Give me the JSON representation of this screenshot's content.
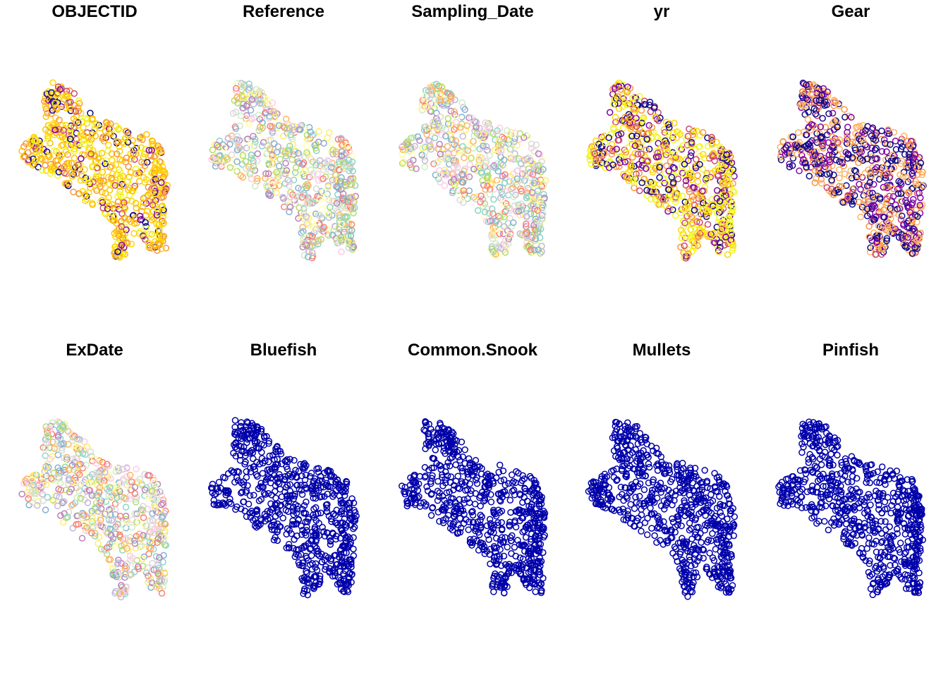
{
  "chart_data": {
    "type": "scatter",
    "description_style": "small-multiples spatial point maps, hollow circle markers",
    "layout": {
      "rows": 2,
      "cols": 5
    },
    "panels": [
      {
        "title": "OBJECTID",
        "palette": [
          "#0D0887",
          "#7E03A8",
          "#CC4778",
          "#F89540",
          "#F0F921",
          "#FFD700",
          "#FFC000"
        ],
        "weights": [
          0.08,
          0.05,
          0.06,
          0.14,
          0.12,
          0.3,
          0.25
        ],
        "count": 700
      },
      {
        "title": "Reference",
        "palette": [
          "#8DD3C7",
          "#FFFFB3",
          "#BEBADA",
          "#FB8072",
          "#80B1D3",
          "#FDB462",
          "#B3DE69",
          "#FCCDE5",
          "#D9D9D9",
          "#BC80BD",
          "#CCEBC5",
          "#FFED6F"
        ],
        "weights": [
          1,
          1,
          1,
          1,
          1,
          1,
          1,
          1,
          1,
          1,
          1,
          1
        ],
        "count": 650
      },
      {
        "title": "Sampling_Date",
        "palette": [
          "#8DD3C7",
          "#FFFFB3",
          "#BEBADA",
          "#FB8072",
          "#80B1D3",
          "#FDB462",
          "#B3DE69",
          "#FCCDE5",
          "#D9D9D9",
          "#BC80BD",
          "#CCEBC5",
          "#FFED6F"
        ],
        "weights": [
          1,
          1,
          1,
          1,
          1,
          1,
          1,
          1,
          1,
          1,
          1,
          1
        ],
        "count": 650
      },
      {
        "title": "yr",
        "palette": [
          "#0D0887",
          "#7E03A8",
          "#CC4778",
          "#F89540",
          "#F0F921",
          "#FFD700"
        ],
        "weights": [
          0.12,
          0.1,
          0.14,
          0.18,
          0.26,
          0.2
        ],
        "count": 700
      },
      {
        "title": "Gear",
        "palette": [
          "#0D0887",
          "#7E03A8",
          "#CC4778",
          "#FDB462",
          "#F89540"
        ],
        "weights": [
          0.35,
          0.25,
          0.05,
          0.2,
          0.15
        ],
        "count": 700
      },
      {
        "title": "ExDate",
        "palette": [
          "#8DD3C7",
          "#FFFFB3",
          "#BEBADA",
          "#FB8072",
          "#80B1D3",
          "#FDB462",
          "#B3DE69",
          "#FCCDE5",
          "#D9D9D9",
          "#BC80BD",
          "#CCEBC5",
          "#FFED6F"
        ],
        "weights": [
          1,
          1,
          1,
          1,
          1,
          1,
          1,
          1,
          1,
          1,
          1,
          1
        ],
        "count": 650
      },
      {
        "title": "Bluefish",
        "palette": [
          "#0000AA"
        ],
        "weights": [
          1
        ],
        "count": 700
      },
      {
        "title": "Common.Snook",
        "palette": [
          "#0000AA"
        ],
        "weights": [
          1
        ],
        "count": 700
      },
      {
        "title": "Mullets",
        "palette": [
          "#0000AA"
        ],
        "weights": [
          1
        ],
        "count": 700
      },
      {
        "title": "Pinfish",
        "palette": [
          "#0000AA"
        ],
        "weights": [
          1
        ],
        "count": 700
      }
    ]
  }
}
